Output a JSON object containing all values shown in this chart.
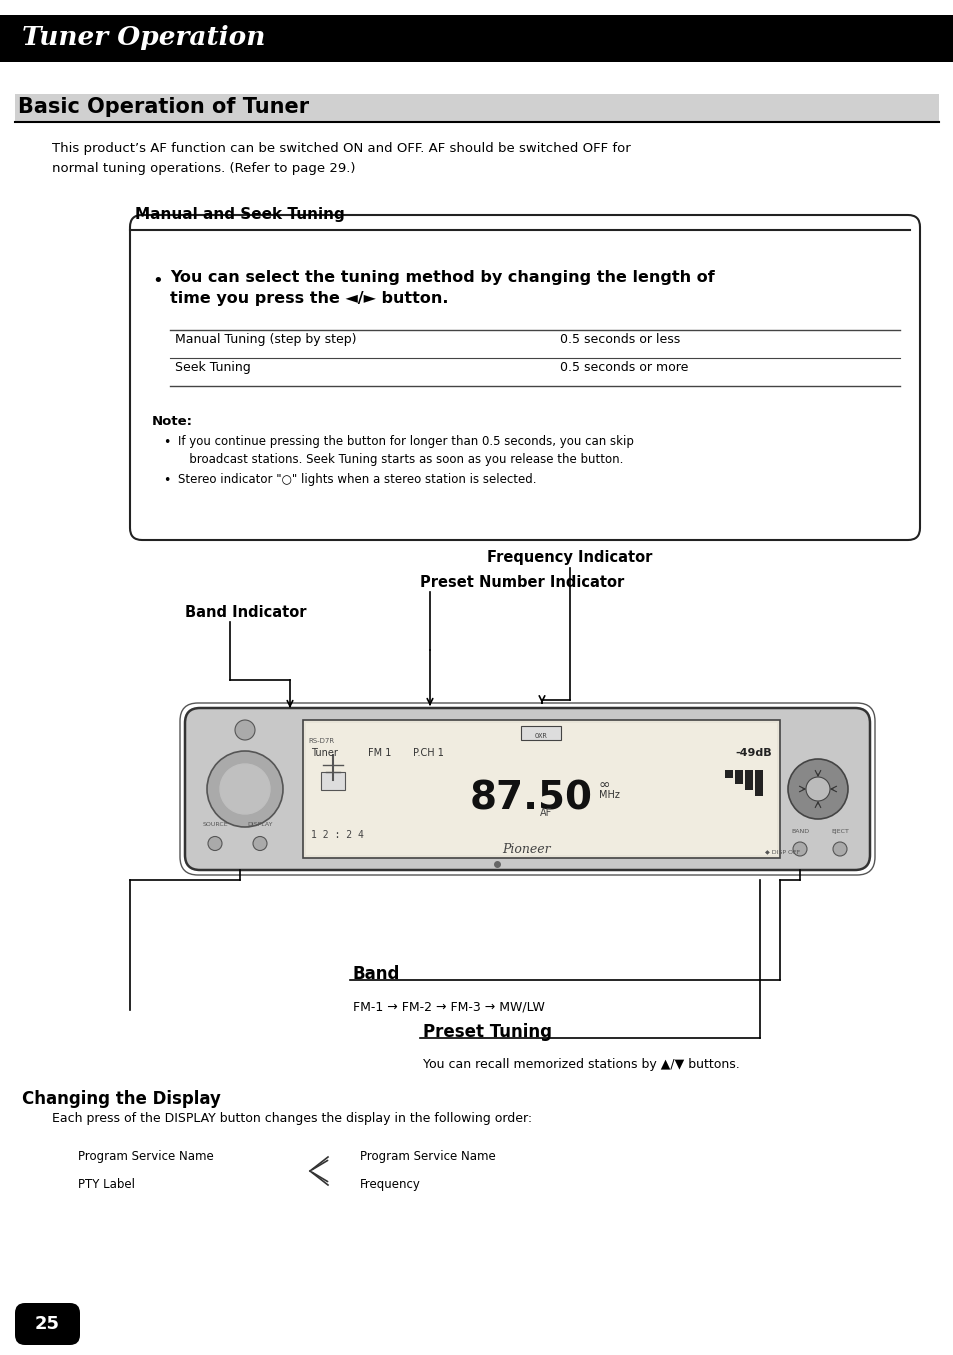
{
  "page_bg": "#ffffff",
  "header_bg": "#000000",
  "header_text": "Tuner Operation",
  "header_text_color": "#ffffff",
  "section_title": "Basic Operation of Tuner",
  "intro_text": "This product’s AF function can be switched ON and OFF. AF should be switched OFF for\nnormal tuning operations. (Refer to page 29.)",
  "subsection_title": "Manual and Seek Tuning",
  "bullet_text": "You can select the tuning method by changing the length of\ntime you press the ◄/► button.",
  "table_rows": [
    [
      "Manual Tuning (step by step)",
      "0.5 seconds or less"
    ],
    [
      "Seek Tuning",
      "0.5 seconds or more"
    ]
  ],
  "note_label": "Note:",
  "note_bullets": [
    "If you continue pressing the button for longer than 0.5 seconds, you can skip\n   broadcast stations. Seek Tuning starts as soon as you release the button.",
    "Stereo indicator \"○\" lights when a stereo station is selected."
  ],
  "freq_indicator_label": "Frequency Indicator",
  "preset_indicator_label": "Preset Number Indicator",
  "band_indicator_label": "Band Indicator",
  "band_label": "Band",
  "band_seq": "FM-1 → FM-2 → FM-3 → MW/LW",
  "preset_tuning_label": "Preset Tuning",
  "preset_tuning_text": "You can recall memorized stations by ▲/▼ buttons.",
  "changing_display_title": "Changing the Display",
  "changing_display_text": "Each press of the DISPLAY button changes the display in the following order:",
  "display_col1": [
    "Program Service Name",
    "PTY Label"
  ],
  "display_col2": [
    "Program Service Name",
    "Frequency"
  ],
  "page_number": "25"
}
